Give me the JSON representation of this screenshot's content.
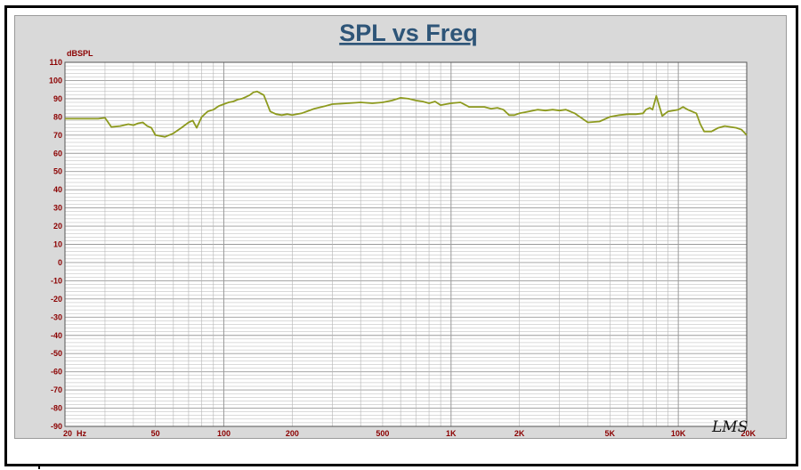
{
  "colors": {
    "background": "#d9d9d9",
    "plot_bg": "#ffffff",
    "grid": "#b4b4b4",
    "grid_major": "#9a9a9a",
    "title": "#2e5578",
    "tick_text": "#8b0000",
    "curve": "#8d9a1e"
  },
  "chart_data": {
    "type": "line",
    "title": "SPL vs Freq",
    "ylabel": "dBSPL",
    "xlabel": "",
    "x_scale": "log",
    "xlim": [
      20,
      20000
    ],
    "ylim": [
      -90,
      110
    ],
    "grid": true,
    "watermark": "LMS",
    "x_tick_labels": [
      {
        "value": 20,
        "label": "20  Hz"
      },
      {
        "value": 50,
        "label": "50"
      },
      {
        "value": 100,
        "label": "100"
      },
      {
        "value": 200,
        "label": "200"
      },
      {
        "value": 500,
        "label": "500"
      },
      {
        "value": 1000,
        "label": "1K"
      },
      {
        "value": 2000,
        "label": "2K"
      },
      {
        "value": 5000,
        "label": "5K"
      },
      {
        "value": 10000,
        "label": "10K"
      },
      {
        "value": 20000,
        "label": "20K"
      }
    ],
    "y_ticks": [
      110,
      100,
      90,
      80,
      70,
      60,
      50,
      40,
      30,
      20,
      10,
      0,
      -10,
      -20,
      -30,
      -40,
      -50,
      -60,
      -70,
      -80,
      -90
    ],
    "series": [
      {
        "x": [
          20,
          24,
          28,
          30,
          32,
          35,
          38,
          40,
          42,
          44,
          46,
          48,
          50,
          55,
          60,
          65,
          70,
          73,
          76,
          80,
          85,
          90,
          95,
          100,
          105,
          110,
          115,
          120,
          125,
          130,
          135,
          140,
          150,
          160,
          170,
          180,
          190,
          200,
          220,
          250,
          280,
          300,
          350,
          400,
          450,
          500,
          550,
          600,
          650,
          700,
          750,
          800,
          850,
          900,
          950,
          1000,
          1100,
          1200,
          1300,
          1400,
          1500,
          1600,
          1700,
          1800,
          1900,
          2000,
          2200,
          2400,
          2600,
          2800,
          3000,
          3200,
          3500,
          4000,
          4500,
          5000,
          5500,
          6000,
          6500,
          7000,
          7200,
          7500,
          7700,
          8000,
          8500,
          9000,
          9500,
          10000,
          10500,
          11000,
          12000,
          12500,
          13000,
          14000,
          15000,
          16000,
          17000,
          18000,
          19000,
          20000
        ],
        "y": [
          79,
          79,
          79,
          79.5,
          74.5,
          75,
          76,
          75.5,
          76.5,
          77,
          75,
          74,
          70,
          69,
          71,
          74,
          77,
          78,
          74,
          80,
          83,
          84,
          86,
          87,
          88,
          88.5,
          89.5,
          90,
          91,
          92,
          93.5,
          94,
          92,
          83,
          81.5,
          81,
          81.5,
          81,
          82,
          84.5,
          86,
          87,
          87.5,
          88,
          87.5,
          88,
          89,
          90.5,
          90,
          89,
          88.5,
          87.5,
          88.5,
          86.5,
          87,
          87.5,
          88,
          85.5,
          85.5,
          85.5,
          84.5,
          85,
          84,
          81,
          81,
          82,
          83,
          84,
          83.5,
          84,
          83.5,
          84,
          82,
          77,
          77.5,
          80,
          81,
          81.5,
          81.5,
          82,
          84,
          85,
          84,
          91.5,
          80.5,
          83,
          83.5,
          84,
          85.5,
          84,
          82,
          76,
          72,
          72,
          74,
          75,
          74.5,
          74,
          73,
          70
        ]
      }
    ]
  }
}
